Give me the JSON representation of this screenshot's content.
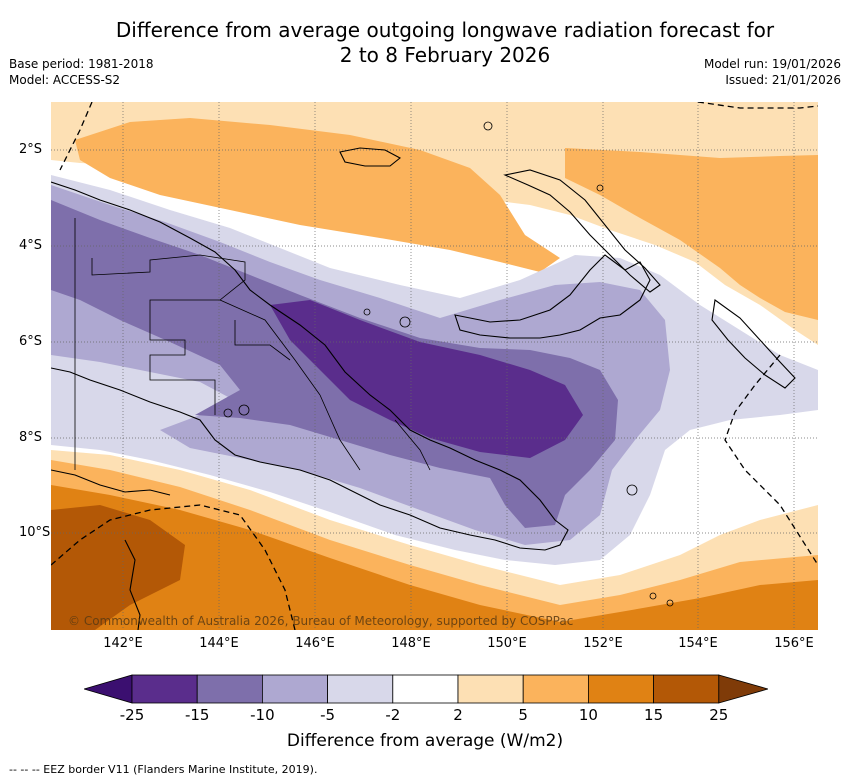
{
  "title_line1": "Difference from average outgoing longwave radiation forecast for",
  "title_line2": "2 to 8 February 2026",
  "base_period": "Base period: 1981-2018",
  "model": "Model: ACCESS-S2",
  "model_run": "Model run: 19/01/2026",
  "issued": "Issued: 21/01/2026",
  "lat_labels": [
    "2°S",
    "4°S",
    "6°S",
    "8°S",
    "10°S"
  ],
  "lon_labels": [
    "142°E",
    "144°E",
    "146°E",
    "148°E",
    "150°E",
    "152°E",
    "154°E",
    "156°E"
  ],
  "copyright": "© Commonwealth of Australia 2026, Bureau of Meteorology, supported by COSPPac",
  "colorbar": {
    "ticks": [
      "-25",
      "-15",
      "-10",
      "-5",
      "-2",
      "2",
      "5",
      "10",
      "15",
      "25"
    ],
    "colors": [
      "#3b0f70",
      "#5a2d8c",
      "#7e6fab",
      "#aea8d1",
      "#d8d8ea",
      "#ffffff",
      "#fde0b4",
      "#fbb35c",
      "#e08214",
      "#b35806",
      "#7f3b08"
    ],
    "label": "Difference from average (W/m2)"
  },
  "footnote": "--  --  -- EEZ border V11 (Flanders Marine Institute, 2019)."
}
